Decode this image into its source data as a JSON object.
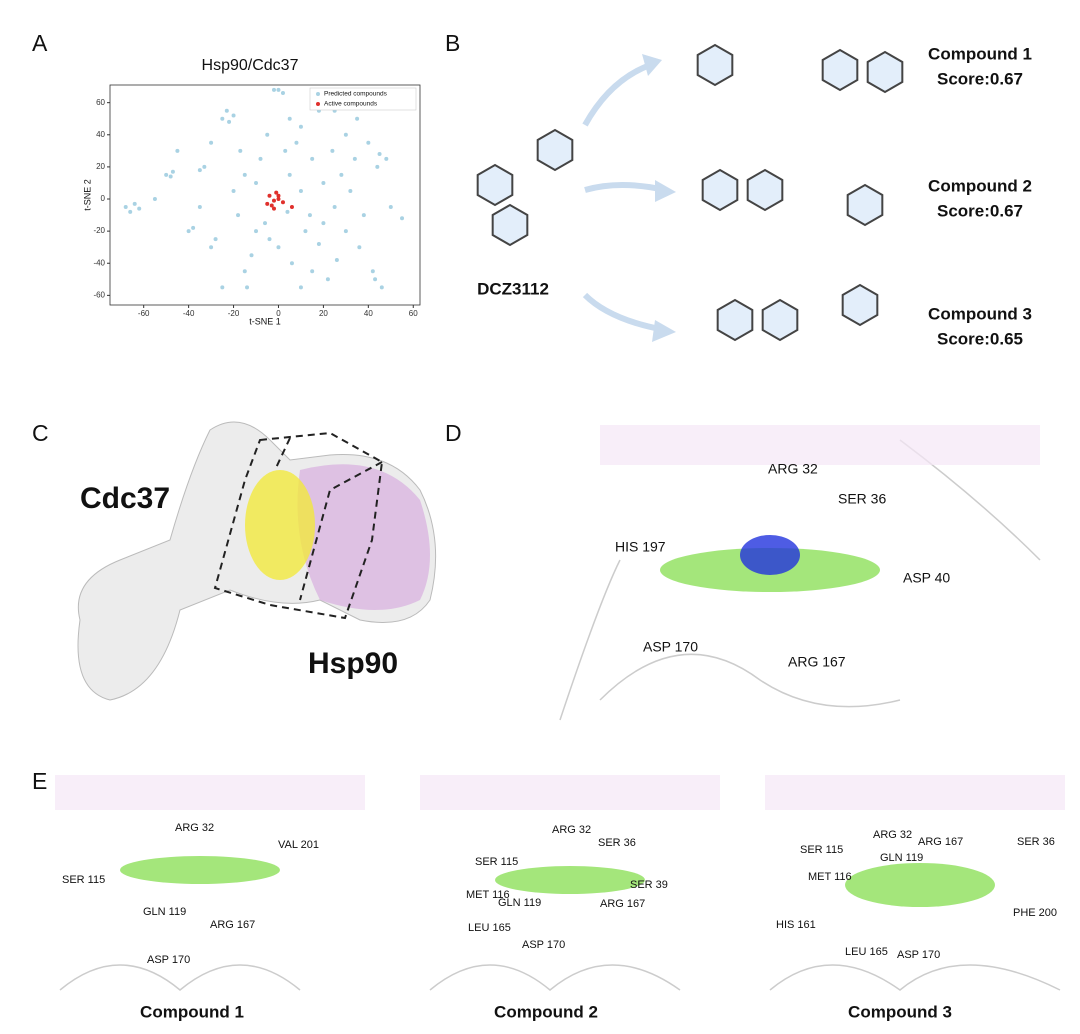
{
  "chart_data": {
    "type": "scatter",
    "title": "Hsp90/Cdc37",
    "x_label": "t-SNE 1",
    "y_label": "t-SNE 2",
    "xlim": [
      -75,
      63
    ],
    "ylim": [
      -66,
      71
    ],
    "xticks": [
      -60,
      -40,
      -20,
      0,
      20,
      40,
      60
    ],
    "yticks": [
      -60,
      -40,
      -20,
      0,
      20,
      40,
      60
    ],
    "legend": "upper right",
    "series": [
      {
        "name": "Predicted compounds",
        "color": "#a9d2e3",
        "x": [
          -68,
          -66,
          -64,
          -62,
          -50,
          -48,
          -47,
          -40,
          -38,
          -35,
          -33,
          -30,
          -28,
          -25,
          -23,
          -22,
          -20,
          -20,
          -18,
          -17,
          -15,
          -14,
          -12,
          -10,
          -8,
          -6,
          -5,
          -4,
          -2,
          0,
          2,
          3,
          4,
          5,
          6,
          8,
          10,
          10,
          12,
          14,
          15,
          18,
          18,
          20,
          20,
          22,
          24,
          25,
          26,
          28,
          30,
          30,
          32,
          34,
          36,
          38,
          40,
          42,
          43,
          44,
          45,
          46,
          48,
          50,
          55,
          -30,
          -35,
          -45,
          -55,
          10,
          -25,
          0,
          35,
          15,
          -10,
          5,
          25,
          -15
        ],
        "y": [
          -5,
          -8,
          -3,
          -6,
          15,
          14,
          17,
          -20,
          -18,
          18,
          20,
          -30,
          -25,
          50,
          55,
          48,
          52,
          5,
          -10,
          30,
          -45,
          -55,
          -35,
          10,
          25,
          -15,
          40,
          -25,
          68,
          68,
          66,
          30,
          -8,
          15,
          -40,
          35,
          45,
          5,
          -20,
          -10,
          25,
          55,
          -28,
          -15,
          10,
          -50,
          30,
          -5,
          -38,
          15,
          40,
          -20,
          5,
          25,
          -30,
          -10,
          35,
          -45,
          -50,
          20,
          28,
          -55,
          25,
          -5,
          -12,
          35,
          -5,
          30,
          0,
          -55,
          -55,
          -30,
          50,
          -45,
          -20,
          50,
          55,
          15
        ]
      },
      {
        "name": "Active compounds",
        "color": "#e0302c",
        "x": [
          -4,
          -2,
          -3,
          -1,
          0,
          -5,
          2,
          6,
          -2,
          0
        ],
        "y": [
          2,
          -1,
          -4,
          4,
          0,
          -3,
          -2,
          -5,
          -6,
          2
        ]
      }
    ]
  },
  "panel_a": {
    "label": "A"
  },
  "panel_b": {
    "label": "B",
    "query": "DCZ3112",
    "compounds": [
      {
        "name": "Compound 1",
        "score": "Score:0.67"
      },
      {
        "name": "Compound 2",
        "score": "Score:0.67"
      },
      {
        "name": "Compound 3",
        "score": "Score:0.65"
      }
    ]
  },
  "panel_c": {
    "label": "C",
    "proteins": [
      "Cdc37",
      "Hsp90"
    ]
  },
  "panel_d": {
    "label": "D",
    "residues": [
      "ARG 32",
      "SER 36",
      "HIS 197",
      "ASP 40",
      "ASP 170",
      "ARG 167"
    ]
  },
  "panel_e": {
    "label": "E",
    "views": [
      {
        "title": "Compound 1",
        "residues": [
          "ARG 32",
          "VAL 201",
          "SER 115",
          "GLN 119",
          "ARG 167",
          "ASP 170"
        ]
      },
      {
        "title": "Compound 2",
        "residues": [
          "ARG 32",
          "SER 36",
          "SER 115",
          "SER 39",
          "MET 116",
          "GLN 119",
          "ARG 167",
          "LEU 165",
          "ASP 170"
        ]
      },
      {
        "title": "Compound 3",
        "residues": [
          "ARG 32",
          "SER 115",
          "ARG 167",
          "SER 36",
          "GLN 119",
          "MET 116",
          "PHE 200",
          "HIS 161",
          "LEU 165",
          "ASP 170"
        ]
      }
    ]
  }
}
